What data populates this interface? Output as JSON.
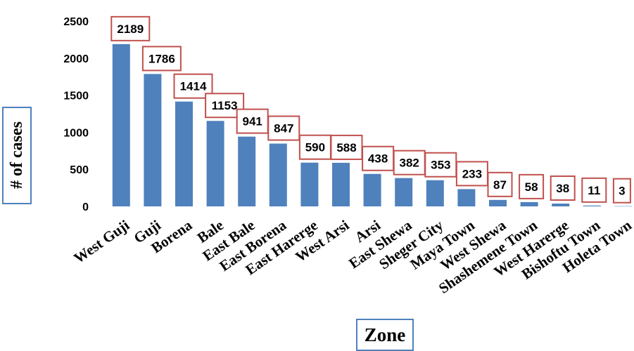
{
  "chart_data": {
    "type": "bar",
    "categories": [
      "West Guji",
      "Guji",
      "Borena",
      "Bale",
      "East Bale",
      "East Borena",
      "East Harerge",
      "West Arsi",
      "Arsi",
      "East Shewa",
      "Sheger City",
      "Maya Town",
      "West Shewa",
      "Shashemene Town",
      "West Harerge",
      "Bishoftu Town",
      "Holeta Town"
    ],
    "values": [
      2189,
      1786,
      1414,
      1153,
      941,
      847,
      590,
      588,
      438,
      382,
      353,
      233,
      87,
      58,
      38,
      11,
      3
    ],
    "ylabel": "# of cases",
    "xlabel": "Zone",
    "ylim": [
      0,
      2500
    ],
    "yticks": [
      "0",
      "500",
      "1000",
      "1500",
      "2000",
      "2500"
    ],
    "grid": false,
    "bar_color": "#4f81bd",
    "label_border_color": "#c0504d"
  }
}
